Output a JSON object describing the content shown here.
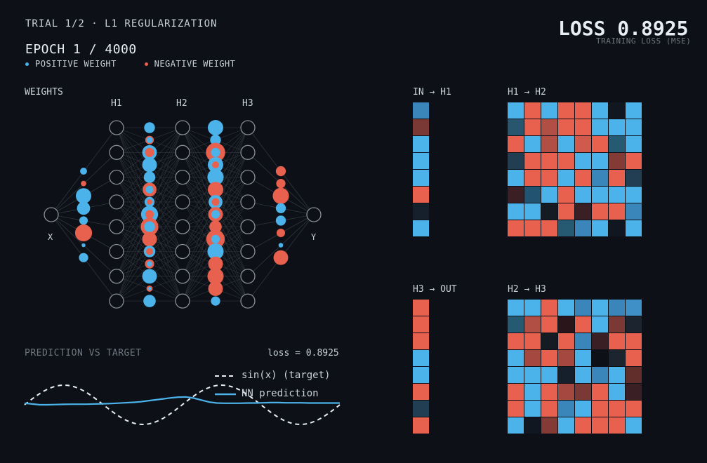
{
  "header": {
    "trial": "TRIAL 1/2  ·  L1 REGULARIZATION",
    "epoch": "EPOCH 1 / 4000",
    "legend_positive": "POSITIVE WEIGHT",
    "legend_negative": "NEGATIVE WEIGHT",
    "loss_title": "LOSS 0.8925",
    "loss_subtitle": "TRAINING LOSS (MSE)"
  },
  "colors": {
    "background": "#0d1117",
    "positive": "#4cb3ea",
    "negative": "#e8604e",
    "node_stroke": "#8b8f96",
    "edge": "#30363d"
  },
  "network": {
    "section_label": "WEIGHTS",
    "layer_labels": [
      "H1",
      "H2",
      "H3"
    ],
    "input_label": "X",
    "output_label": "Y",
    "weights_in_h1": [
      {
        "s": 1,
        "m": 0.45
      },
      {
        "s": -1,
        "m": 0.35
      },
      {
        "s": 1,
        "m": 1.0
      },
      {
        "s": 1,
        "m": 0.85
      },
      {
        "s": 1,
        "m": 0.55
      },
      {
        "s": -1,
        "m": 1.1
      },
      {
        "s": 1,
        "m": 0.25
      },
      {
        "s": 1,
        "m": 0.6
      }
    ],
    "weights_h1_h2": [
      [
        {
          "s": 1,
          "m": 0.7
        }
      ],
      [
        {
          "s": -1,
          "m": 0.55
        },
        {
          "s": 1,
          "m": 0.4
        }
      ],
      [
        {
          "s": 1,
          "m": 0.95
        },
        {
          "s": -1,
          "m": 0.6
        }
      ],
      [
        {
          "s": 1,
          "m": 0.95
        }
      ],
      [
        {
          "s": 1,
          "m": 0.75
        }
      ],
      [
        {
          "s": -1,
          "m": 0.9
        },
        {
          "s": 1,
          "m": 0.5
        }
      ],
      [
        {
          "s": 1,
          "m": 0.65
        },
        {
          "s": -1,
          "m": 0.35
        }
      ],
      [
        {
          "s": 1,
          "m": 1.1
        },
        {
          "s": -1,
          "m": 0.55
        }
      ],
      [
        {
          "s": -1,
          "m": 1.15
        },
        {
          "s": 1,
          "m": 0.7
        }
      ],
      [
        {
          "s": -1,
          "m": 0.95
        }
      ],
      [
        {
          "s": 1,
          "m": 0.75
        },
        {
          "s": -1,
          "m": 0.45
        }
      ],
      [
        {
          "s": -1,
          "m": 0.6
        },
        {
          "s": 1,
          "m": 0.35
        }
      ],
      [
        {
          "s": 1,
          "m": 0.95
        }
      ],
      [
        {
          "s": -1,
          "m": 0.4
        },
        {
          "s": 1,
          "m": 0.2
        }
      ],
      [
        {
          "s": 1,
          "m": 0.8
        }
      ]
    ],
    "weights_h2_h3": [
      [
        {
          "s": 1,
          "m": 1.0
        }
      ],
      [
        {
          "s": 1,
          "m": 0.7
        }
      ],
      [
        {
          "s": -1,
          "m": 1.25
        },
        {
          "s": 1,
          "m": 0.6
        }
      ],
      [
        {
          "s": 1,
          "m": 1.0
        },
        {
          "s": -1,
          "m": 0.45
        }
      ],
      [
        {
          "s": 1,
          "m": 1.05
        }
      ],
      [
        {
          "s": -1,
          "m": 1.0
        }
      ],
      [
        {
          "s": 1,
          "m": 0.9
        },
        {
          "s": -1,
          "m": 0.5
        }
      ],
      [
        {
          "s": -1,
          "m": 0.95
        },
        {
          "s": 1,
          "m": 0.55
        }
      ],
      [
        {
          "s": -1,
          "m": 0.8
        }
      ],
      [
        {
          "s": -1,
          "m": 1.2
        },
        {
          "s": 1,
          "m": 0.55
        }
      ],
      [
        {
          "s": 1,
          "m": 1.05
        }
      ],
      [
        {
          "s": -1,
          "m": 0.95
        }
      ],
      [
        {
          "s": -1,
          "m": 1.05
        }
      ],
      [
        {
          "s": -1,
          "m": 0.95
        }
      ],
      [
        {
          "s": 1,
          "m": 0.6
        }
      ]
    ],
    "weights_h3_out": [
      {
        "s": -1,
        "m": 0.65
      },
      {
        "s": -1,
        "m": 0.6
      },
      {
        "s": -1,
        "m": 1.05
      },
      {
        "s": 1,
        "m": 0.65
      },
      {
        "s": 1,
        "m": 0.65
      },
      {
        "s": -1,
        "m": 0.55
      },
      {
        "s": 1,
        "m": 0.3
      },
      {
        "s": -1,
        "m": 0.95
      }
    ]
  },
  "prediction": {
    "label": "PREDICTION VS TARGET",
    "loss_text": "loss = 0.8925",
    "legend_target": "sin(x)  (target)",
    "legend_pred": "NN prediction",
    "target_periods": 2.0,
    "pred_y": [
      0.92,
      0.96,
      1.0,
      1.0,
      0.99,
      0.98,
      0.97,
      0.97,
      0.97,
      0.96,
      0.95,
      0.94,
      0.92,
      0.9,
      0.88,
      0.85,
      0.8,
      0.75,
      0.7,
      0.65,
      0.61,
      0.6,
      0.66,
      0.76,
      0.86,
      0.91,
      0.92,
      0.92,
      0.92,
      0.91,
      0.91,
      0.9,
      0.89,
      0.89,
      0.9,
      0.9,
      0.9,
      0.91,
      0.91,
      0.91,
      0.91,
      0.91
    ]
  },
  "matrices": {
    "in_h1": {
      "label": "IN → H1",
      "cells": [
        [
          "#3a85ba"
        ],
        [
          "#7a3934"
        ],
        [
          "#4cb3ea"
        ],
        [
          "#4cb3ea"
        ],
        [
          "#4cb3ea"
        ],
        [
          "#e8604e"
        ],
        [
          "#16202c"
        ],
        [
          "#4cb3ea"
        ]
      ]
    },
    "h1_h2": {
      "label": "H1 → H2",
      "cells": [
        [
          "#4cb3ea",
          "#e8604e",
          "#4cb3ea",
          "#e8604e",
          "#e8604e",
          "#4cb3ea",
          "#111720",
          "#4cb3ea"
        ],
        [
          "#27566e",
          "#e8604e",
          "#b24f44",
          "#e8604e",
          "#e8604e",
          "#4cb3ea",
          "#4cb3ea",
          "#4cb3ea"
        ],
        [
          "#e8604e",
          "#4cb3ea",
          "#b24f44",
          "#4cb3ea",
          "#d05a4c",
          "#e8604e",
          "#265a72",
          "#4cb3ea"
        ],
        [
          "#213e52",
          "#e8604e",
          "#e8604e",
          "#e8604e",
          "#4cb3ea",
          "#4cb3ea",
          "#843b35",
          "#e8604e"
        ],
        [
          "#4cb3ea",
          "#e8604e",
          "#e8604e",
          "#4cb3ea",
          "#e8604e",
          "#3a85ba",
          "#e8604e",
          "#213e52"
        ],
        [
          "#3a2024",
          "#225472",
          "#4cb3ea",
          "#e8604e",
          "#4cb3ea",
          "#4cb3ea",
          "#4cb3ea",
          "#4cb3ea"
        ],
        [
          "#4cb3ea",
          "#4cb3ea",
          "#151b23",
          "#e8604e",
          "#3a2024",
          "#e8604e",
          "#e8604e",
          "#3a85ba"
        ],
        [
          "#e8604e",
          "#e8604e",
          "#e8604e",
          "#265a72",
          "#3a85ba",
          "#4cb3ea",
          "#111720",
          "#4cb3ea"
        ]
      ]
    },
    "h3_out": {
      "label": "H3 → OUT",
      "cells": [
        [
          "#e8604e"
        ],
        [
          "#e8604e"
        ],
        [
          "#e8604e"
        ],
        [
          "#4cb3ea"
        ],
        [
          "#4cb3ea"
        ],
        [
          "#e8604e"
        ],
        [
          "#213e52"
        ],
        [
          "#e8604e"
        ]
      ]
    },
    "h2_h3": {
      "label": "H2 → H3",
      "cells": [
        [
          "#4cb3ea",
          "#4cb3ea",
          "#e8604e",
          "#4cb3ea",
          "#3a85ba",
          "#4cb3ea",
          "#3a85ba",
          "#4090c8"
        ],
        [
          "#265a72",
          "#b24f44",
          "#e8604e",
          "#2a161a",
          "#e8604e",
          "#4cb3ea",
          "#7a3934",
          "#1c2430"
        ],
        [
          "#e8604e",
          "#e8604e",
          "#151b23",
          "#e8604e",
          "#3a85ba",
          "#3a2024",
          "#e8604e",
          "#e8604e"
        ],
        [
          "#4cb3ea",
          "#a5483f",
          "#e8604e",
          "#a5483f",
          "#4cb3ea",
          "#0d1117",
          "#1c2430",
          "#e8604e"
        ],
        [
          "#4cb3ea",
          "#4cb3ea",
          "#4cb3ea",
          "#16202c",
          "#4cb3ea",
          "#3a85ba",
          "#4cb3ea",
          "#612e2c"
        ],
        [
          "#e8604e",
          "#4cb3ea",
          "#e8604e",
          "#a5483f",
          "#7a3934",
          "#e8604e",
          "#4cb3ea",
          "#3a2024"
        ],
        [
          "#e8604e",
          "#4cb3ea",
          "#e8604e",
          "#3a85ba",
          "#4cb3ea",
          "#e8604e",
          "#e8604e",
          "#e8604e"
        ],
        [
          "#4cb3ea",
          "#111720",
          "#843b35",
          "#4cb3ea",
          "#e8604e",
          "#e8604e",
          "#e8604e",
          "#4cb3ea"
        ]
      ]
    }
  }
}
